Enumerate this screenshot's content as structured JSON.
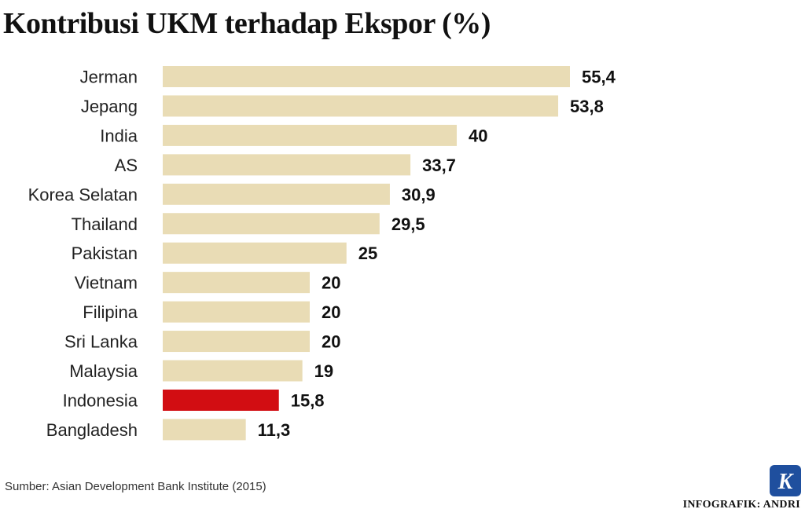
{
  "chart_data": {
    "type": "bar",
    "orientation": "horizontal",
    "title": "Kontribusi UKM terhadap Ekspor (%)",
    "categories": [
      "Jerman",
      "Jepang",
      "India",
      "AS",
      "Korea Selatan",
      "Thailand",
      "Pakistan",
      "Vietnam",
      "Filipina",
      "Sri Lanka",
      "Malaysia",
      "Indonesia",
      "Bangladesh"
    ],
    "values": [
      55.4,
      53.8,
      40,
      33.7,
      30.9,
      29.5,
      25,
      20,
      20,
      20,
      19,
      15.8,
      11.3
    ],
    "value_labels": [
      "55,4",
      "53,8",
      "40",
      "33,7",
      "30,9",
      "29,5",
      "25",
      "20",
      "20",
      "20",
      "19",
      "15,8",
      "11,3"
    ],
    "highlight": "Indonesia",
    "colors": {
      "bar": "#e9dcb5",
      "highlight": "#d20d12"
    },
    "grid": false,
    "legend": "none"
  },
  "source": "Sumber: Asian Development Bank Institute (2015)",
  "credit": "INFOGRAFIK: ANDRI",
  "logo": {
    "icon": "kompas-k-logo-icon",
    "letter": "K"
  }
}
